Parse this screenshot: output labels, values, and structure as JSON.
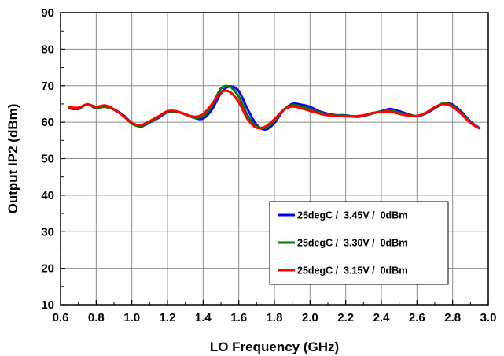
{
  "chart_data": {
    "type": "line",
    "title": "",
    "xlabel": "LO Frequency (GHz)",
    "ylabel": "Output IP2 (dBm)",
    "xlim": [
      0.6,
      3.0
    ],
    "ylim": [
      10,
      90
    ],
    "xticks": [
      "0.6",
      "0.8",
      "1.0",
      "1.2",
      "1.4",
      "1.6",
      "1.8",
      "2.0",
      "2.2",
      "2.4",
      "2.6",
      "2.8",
      "3.0"
    ],
    "yticks": [
      "10",
      "20",
      "30",
      "40",
      "50",
      "60",
      "70",
      "80",
      "90"
    ],
    "grid": true,
    "legend_position": "lower-right",
    "series": [
      {
        "name": "25degC /  3.45V /  0dBm",
        "color": "#0000ff",
        "x": [
          0.65,
          0.7,
          0.75,
          0.8,
          0.85,
          0.9,
          0.95,
          1.0,
          1.05,
          1.1,
          1.15,
          1.2,
          1.25,
          1.3,
          1.35,
          1.4,
          1.45,
          1.5,
          1.55,
          1.6,
          1.65,
          1.7,
          1.75,
          1.8,
          1.85,
          1.9,
          1.95,
          2.0,
          2.05,
          2.1,
          2.15,
          2.2,
          2.25,
          2.3,
          2.35,
          2.4,
          2.45,
          2.5,
          2.55,
          2.6,
          2.65,
          2.7,
          2.75,
          2.8,
          2.85,
          2.9,
          2.95
        ],
        "y": [
          63.8,
          63.6,
          64.9,
          63.8,
          64.3,
          63.5,
          62.0,
          59.8,
          58.8,
          59.9,
          61.2,
          62.7,
          62.9,
          62.2,
          61.2,
          61.0,
          63.5,
          68.0,
          69.8,
          68.5,
          63.5,
          59.3,
          58.0,
          59.8,
          63.2,
          65.0,
          64.8,
          64.2,
          63.0,
          62.3,
          61.9,
          61.9,
          61.5,
          61.7,
          62.4,
          63.0,
          63.6,
          63.0,
          62.2,
          61.6,
          62.4,
          63.8,
          65.2,
          64.8,
          62.8,
          60.2,
          58.4
        ]
      },
      {
        "name": "25degC /  3.30V /  0dBm",
        "color": "#007a00",
        "x": [
          0.65,
          0.7,
          0.75,
          0.8,
          0.85,
          0.9,
          0.95,
          1.0,
          1.05,
          1.1,
          1.15,
          1.2,
          1.25,
          1.3,
          1.35,
          1.4,
          1.45,
          1.5,
          1.55,
          1.6,
          1.65,
          1.7,
          1.75,
          1.8,
          1.85,
          1.9,
          1.95,
          2.0,
          2.05,
          2.1,
          2.15,
          2.2,
          2.25,
          2.3,
          2.35,
          2.4,
          2.45,
          2.5,
          2.55,
          2.6,
          2.65,
          2.7,
          2.75,
          2.8,
          2.85,
          2.9,
          2.95
        ],
        "y": [
          64.0,
          63.8,
          64.8,
          64.0,
          64.2,
          63.4,
          61.8,
          59.6,
          58.9,
          60.0,
          61.4,
          62.8,
          62.9,
          62.1,
          61.3,
          61.6,
          64.5,
          69.2,
          69.7,
          67.0,
          61.8,
          58.9,
          58.4,
          60.3,
          63.3,
          64.7,
          64.3,
          63.6,
          62.7,
          62.1,
          61.8,
          61.8,
          61.6,
          61.8,
          62.4,
          62.9,
          63.2,
          62.6,
          62.0,
          61.7,
          62.5,
          64.0,
          65.2,
          64.5,
          62.5,
          60.0,
          58.3
        ]
      },
      {
        "name": "25degC /  3.15V /  0dBm",
        "color": "#ff0000",
        "x": [
          0.65,
          0.7,
          0.75,
          0.8,
          0.85,
          0.9,
          0.95,
          1.0,
          1.05,
          1.1,
          1.15,
          1.2,
          1.25,
          1.3,
          1.35,
          1.4,
          1.45,
          1.5,
          1.55,
          1.6,
          1.65,
          1.7,
          1.75,
          1.8,
          1.85,
          1.9,
          1.95,
          2.0,
          2.05,
          2.1,
          2.15,
          2.2,
          2.25,
          2.3,
          2.35,
          2.4,
          2.45,
          2.5,
          2.55,
          2.6,
          2.65,
          2.7,
          2.75,
          2.8,
          2.85,
          2.9,
          2.95
        ],
        "y": [
          64.1,
          64.0,
          64.9,
          64.2,
          64.6,
          63.5,
          61.8,
          59.8,
          59.2,
          60.3,
          61.6,
          63.0,
          63.0,
          62.2,
          61.5,
          62.2,
          65.0,
          68.2,
          68.3,
          65.5,
          60.8,
          58.5,
          58.8,
          60.8,
          63.3,
          64.3,
          63.8,
          63.1,
          62.4,
          61.9,
          61.7,
          61.6,
          61.6,
          61.9,
          62.5,
          62.8,
          62.9,
          62.3,
          61.8,
          61.7,
          62.6,
          64.1,
          65.0,
          64.2,
          62.2,
          59.8,
          58.3
        ]
      }
    ]
  }
}
